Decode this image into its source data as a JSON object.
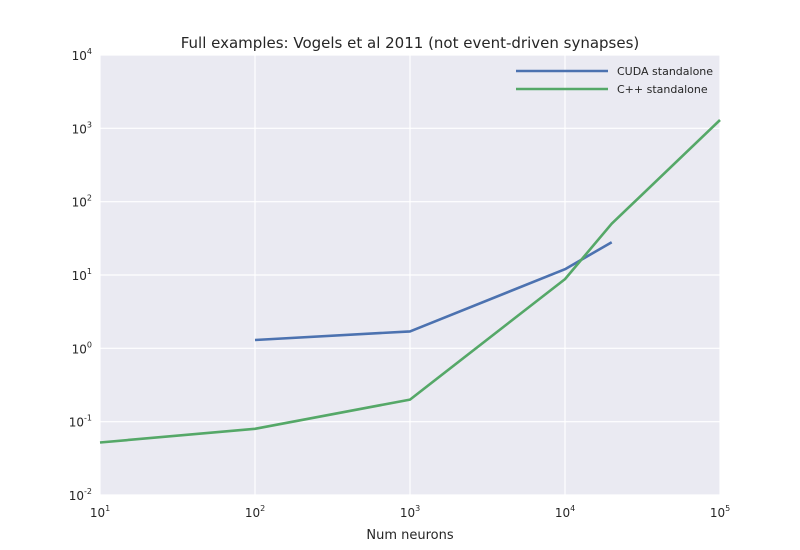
{
  "chart_data": {
    "type": "line",
    "title": "Full examples: Vogels et al 2011 (not event-driven synapses)",
    "xlabel": "Num neurons",
    "ylabel": "",
    "xscale": "log",
    "yscale": "log",
    "xlim": [
      10,
      100000
    ],
    "ylim": [
      0.01,
      10000
    ],
    "grid": true,
    "legend_position": "top-right",
    "x_ticks": [
      {
        "base": "10",
        "exp": "1",
        "value": 10
      },
      {
        "base": "10",
        "exp": "2",
        "value": 100
      },
      {
        "base": "10",
        "exp": "3",
        "value": 1000
      },
      {
        "base": "10",
        "exp": "4",
        "value": 10000
      },
      {
        "base": "10",
        "exp": "5",
        "value": 100000
      }
    ],
    "y_ticks": [
      {
        "base": "10",
        "exp": "-2",
        "value": 0.01
      },
      {
        "base": "10",
        "exp": "-1",
        "value": 0.1
      },
      {
        "base": "10",
        "exp": "0",
        "value": 1
      },
      {
        "base": "10",
        "exp": "1",
        "value": 10
      },
      {
        "base": "10",
        "exp": "2",
        "value": 100
      },
      {
        "base": "10",
        "exp": "3",
        "value": 1000
      },
      {
        "base": "10",
        "exp": "4",
        "value": 10000
      }
    ],
    "series": [
      {
        "name": "CUDA standalone",
        "color": "#4c72b0",
        "x": [
          100,
          1000,
          10000,
          20000
        ],
        "y": [
          1.3,
          1.7,
          12,
          28
        ]
      },
      {
        "name": "C++ standalone",
        "color": "#55a868",
        "x": [
          10,
          100,
          1000,
          10000,
          20000,
          100000
        ],
        "y": [
          0.052,
          0.08,
          0.2,
          8.8,
          50,
          1300
        ]
      }
    ]
  }
}
